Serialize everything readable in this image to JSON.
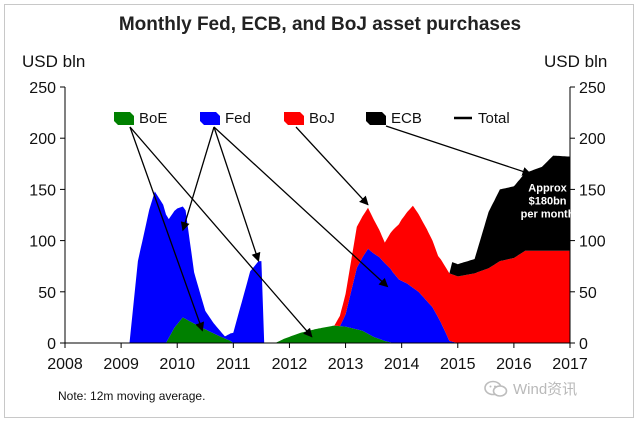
{
  "chart_data": {
    "type": "area",
    "title": "Monthly Fed, ECB, and BoJ asset purchases",
    "ylabel_left": "USD bln",
    "ylabel_right": "USD bln",
    "ylim": [
      0,
      250
    ],
    "yticks": [
      0,
      50,
      100,
      150,
      200,
      250
    ],
    "xlim": [
      2008,
      2017
    ],
    "xticks": [
      2008,
      2009,
      2010,
      2011,
      2012,
      2013,
      2014,
      2015,
      2016,
      2017
    ],
    "stack_order": [
      "BoE",
      "Fed",
      "BoJ",
      "ECB"
    ],
    "series": [
      {
        "name": "BoE",
        "color": "#008000",
        "points": [
          [
            2009.0,
            0
          ],
          [
            2009.2,
            0
          ],
          [
            2009.8,
            0
          ],
          [
            2009.95,
            15
          ],
          [
            2010.1,
            25
          ],
          [
            2010.4,
            16
          ],
          [
            2010.7,
            8
          ],
          [
            2010.95,
            2
          ],
          [
            2011.0,
            0
          ],
          [
            2011.7,
            0
          ],
          [
            2011.75,
            0
          ],
          [
            2011.9,
            4
          ],
          [
            2012.2,
            10
          ],
          [
            2012.5,
            14
          ],
          [
            2012.8,
            17
          ],
          [
            2013.0,
            16
          ],
          [
            2013.3,
            12
          ],
          [
            2013.5,
            6
          ],
          [
            2013.7,
            2
          ],
          [
            2013.85,
            0
          ],
          [
            2014.5,
            0
          ],
          [
            2015.0,
            0
          ],
          [
            2017.0,
            0
          ]
        ]
      },
      {
        "name": "Fed",
        "color": "#0000ff",
        "points": [
          [
            2009.0,
            0
          ],
          [
            2009.15,
            0
          ],
          [
            2009.3,
            80
          ],
          [
            2009.5,
            130
          ],
          [
            2009.6,
            148
          ],
          [
            2009.75,
            135
          ],
          [
            2009.85,
            116
          ],
          [
            2010.0,
            113
          ],
          [
            2010.15,
            106
          ],
          [
            2010.3,
            50
          ],
          [
            2010.5,
            18
          ],
          [
            2010.65,
            10
          ],
          [
            2010.85,
            2
          ],
          [
            2011.0,
            10
          ],
          [
            2011.15,
            40
          ],
          [
            2011.3,
            70
          ],
          [
            2011.45,
            80
          ],
          [
            2011.5,
            80
          ],
          [
            2011.55,
            0
          ],
          [
            2011.7,
            0
          ],
          [
            2012.0,
            0
          ],
          [
            2012.5,
            0
          ],
          [
            2012.9,
            0
          ],
          [
            2013.0,
            12
          ],
          [
            2013.2,
            60
          ],
          [
            2013.4,
            83
          ],
          [
            2013.6,
            80
          ],
          [
            2013.8,
            72
          ],
          [
            2013.95,
            62
          ],
          [
            2014.1,
            58
          ],
          [
            2014.3,
            50
          ],
          [
            2014.55,
            35
          ],
          [
            2014.7,
            20
          ],
          [
            2014.85,
            2
          ],
          [
            2015.0,
            0
          ],
          [
            2017.0,
            0
          ]
        ]
      },
      {
        "name": "BoJ",
        "color": "#ff0000",
        "points": [
          [
            2009.0,
            0
          ],
          [
            2011.65,
            0
          ],
          [
            2011.7,
            0
          ],
          [
            2012.0,
            0
          ],
          [
            2012.5,
            0
          ],
          [
            2012.8,
            0
          ],
          [
            2013.0,
            20
          ],
          [
            2013.2,
            40
          ],
          [
            2013.4,
            40
          ],
          [
            2013.55,
            30
          ],
          [
            2013.7,
            20
          ],
          [
            2013.85,
            42
          ],
          [
            2014.0,
            60
          ],
          [
            2014.2,
            80
          ],
          [
            2014.45,
            70
          ],
          [
            2014.65,
            60
          ],
          [
            2014.85,
            66
          ],
          [
            2015.0,
            65
          ],
          [
            2015.3,
            68
          ],
          [
            2015.55,
            73
          ],
          [
            2015.75,
            80
          ],
          [
            2016.0,
            83
          ],
          [
            2016.2,
            90
          ],
          [
            2016.5,
            90
          ],
          [
            2016.7,
            90
          ],
          [
            2017.0,
            90
          ]
        ]
      },
      {
        "name": "ECB",
        "color": "#000000",
        "points": [
          [
            2009.0,
            0
          ],
          [
            2014.85,
            0
          ],
          [
            2014.9,
            12
          ],
          [
            2015.0,
            12
          ],
          [
            2015.3,
            14
          ],
          [
            2015.55,
            55
          ],
          [
            2015.75,
            70
          ],
          [
            2016.0,
            70
          ],
          [
            2016.2,
            76
          ],
          [
            2016.5,
            82
          ],
          [
            2016.7,
            93
          ],
          [
            2017.0,
            92
          ]
        ]
      }
    ],
    "total_series": {
      "name": "Total",
      "color": "#000000",
      "visible_in_plot": false
    },
    "legend": {
      "placement": "top",
      "entries": [
        {
          "name": "BoE",
          "color": "#008000"
        },
        {
          "name": "Fed",
          "color": "#0000ff"
        },
        {
          "name": "BoJ",
          "color": "#ff0000"
        },
        {
          "name": "ECB",
          "color": "#000000"
        },
        {
          "name": "Total",
          "color": "#000000",
          "style": "line"
        }
      ]
    },
    "annotation": {
      "lines": [
        "Approx",
        "$180bn",
        "per month"
      ],
      "target": [
        2016.6,
        148
      ]
    },
    "arrows": [
      {
        "from": "BoE",
        "to": [
          2010.45,
          12
        ]
      },
      {
        "from": "BoE",
        "to": [
          2012.4,
          6
        ]
      },
      {
        "from": "Fed",
        "to": [
          2010.1,
          110
        ]
      },
      {
        "from": "Fed",
        "to": [
          2011.45,
          80
        ]
      },
      {
        "from": "Fed",
        "to": [
          2013.75,
          55
        ]
      },
      {
        "from": "BoJ",
        "to": [
          2013.4,
          135
        ]
      },
      {
        "from": "ECB",
        "to": [
          2016.3,
          165
        ]
      }
    ],
    "note": "Note: 12m moving average."
  },
  "watermark": {
    "text": "Wind资讯",
    "icon": "wechat-icon"
  }
}
